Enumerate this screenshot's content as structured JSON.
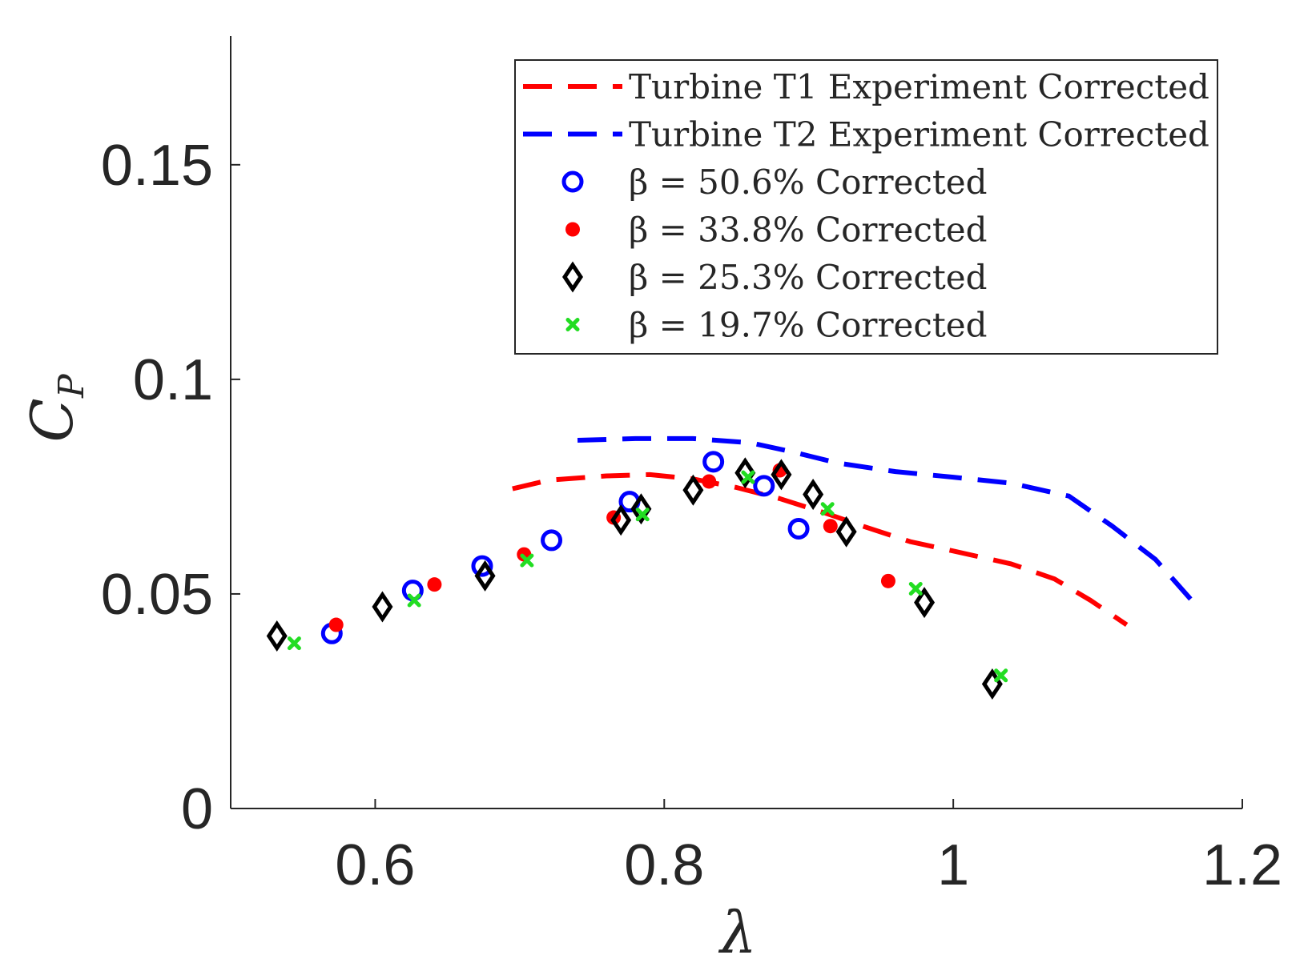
{
  "chart_data": {
    "type": "scatter",
    "title": "",
    "xlabel": "λ",
    "ylabel_main": "C",
    "ylabel_sub": "P",
    "xlim": [
      0.5,
      1.2
    ],
    "ylim": [
      0,
      0.18
    ],
    "xticks": [
      0.6,
      0.8,
      1.0,
      1.2
    ],
    "xtick_labels": [
      "0.6",
      "0.8",
      "1",
      "1.2"
    ],
    "yticks": [
      0,
      0.05,
      0.1,
      0.15
    ],
    "ytick_labels": [
      "0",
      "0.05",
      "0.1",
      "0.15"
    ],
    "grid": false,
    "legend_position": "top-right",
    "series": [
      {
        "name": "Turbine T1 Experiment Corrected",
        "kind": "dashed-line",
        "color": "#ff0000",
        "x": [
          0.695,
          0.72,
          0.76,
          0.79,
          0.82,
          0.85,
          0.88,
          0.91,
          0.94,
          0.97,
          1.0,
          1.04,
          1.07,
          1.095,
          1.12
        ],
        "y": [
          0.0745,
          0.0765,
          0.0775,
          0.0778,
          0.0768,
          0.0748,
          0.0722,
          0.069,
          0.0655,
          0.0622,
          0.06,
          0.057,
          0.0535,
          0.0485,
          0.0428
        ]
      },
      {
        "name": "Turbine T2 Experiment Corrected",
        "kind": "dashed-line",
        "color": "#0000ff",
        "x": [
          0.74,
          0.78,
          0.82,
          0.86,
          0.89,
          0.92,
          0.96,
          1.0,
          1.04,
          1.08,
          1.11,
          1.14,
          1.165
        ],
        "y": [
          0.0858,
          0.0862,
          0.0862,
          0.0852,
          0.083,
          0.0805,
          0.0785,
          0.0772,
          0.0758,
          0.0728,
          0.0658,
          0.058,
          0.0485
        ]
      },
      {
        "name": "β = 50.6% Corrected",
        "kind": "open-circle",
        "color": "#0000ff",
        "x": [
          0.57,
          0.626,
          0.674,
          0.722,
          0.776,
          0.834,
          0.869,
          0.893
        ],
        "y": [
          0.0408,
          0.0508,
          0.0565,
          0.0625,
          0.0715,
          0.0808,
          0.0752,
          0.0652
        ]
      },
      {
        "name": "β = 33.8% Corrected",
        "kind": "filled-circle",
        "color": "#ff0000",
        "x": [
          0.573,
          0.641,
          0.703,
          0.765,
          0.831,
          0.88,
          0.915,
          0.955
        ],
        "y": [
          0.0428,
          0.0522,
          0.0592,
          0.0678,
          0.0762,
          0.0788,
          0.0658,
          0.053
        ]
      },
      {
        "name": "β = 25.3% Corrected",
        "kind": "open-diamond",
        "color": "#000000",
        "x": [
          0.532,
          0.605,
          0.676,
          0.77,
          0.784,
          0.82,
          0.856,
          0.881,
          0.903,
          0.926,
          0.98,
          1.027
        ],
        "y": [
          0.0402,
          0.047,
          0.0542,
          0.0672,
          0.0698,
          0.0742,
          0.0782,
          0.0778,
          0.0732,
          0.0645,
          0.048,
          0.029
        ]
      },
      {
        "name": "β = 19.7% Corrected",
        "kind": "cross",
        "color": "#22dd22",
        "x": [
          0.544,
          0.627,
          0.705,
          0.785,
          0.858,
          0.913,
          0.974,
          1.033
        ],
        "y": [
          0.0385,
          0.0485,
          0.0578,
          0.0685,
          0.0772,
          0.0698,
          0.0512,
          0.031
        ]
      }
    ]
  }
}
